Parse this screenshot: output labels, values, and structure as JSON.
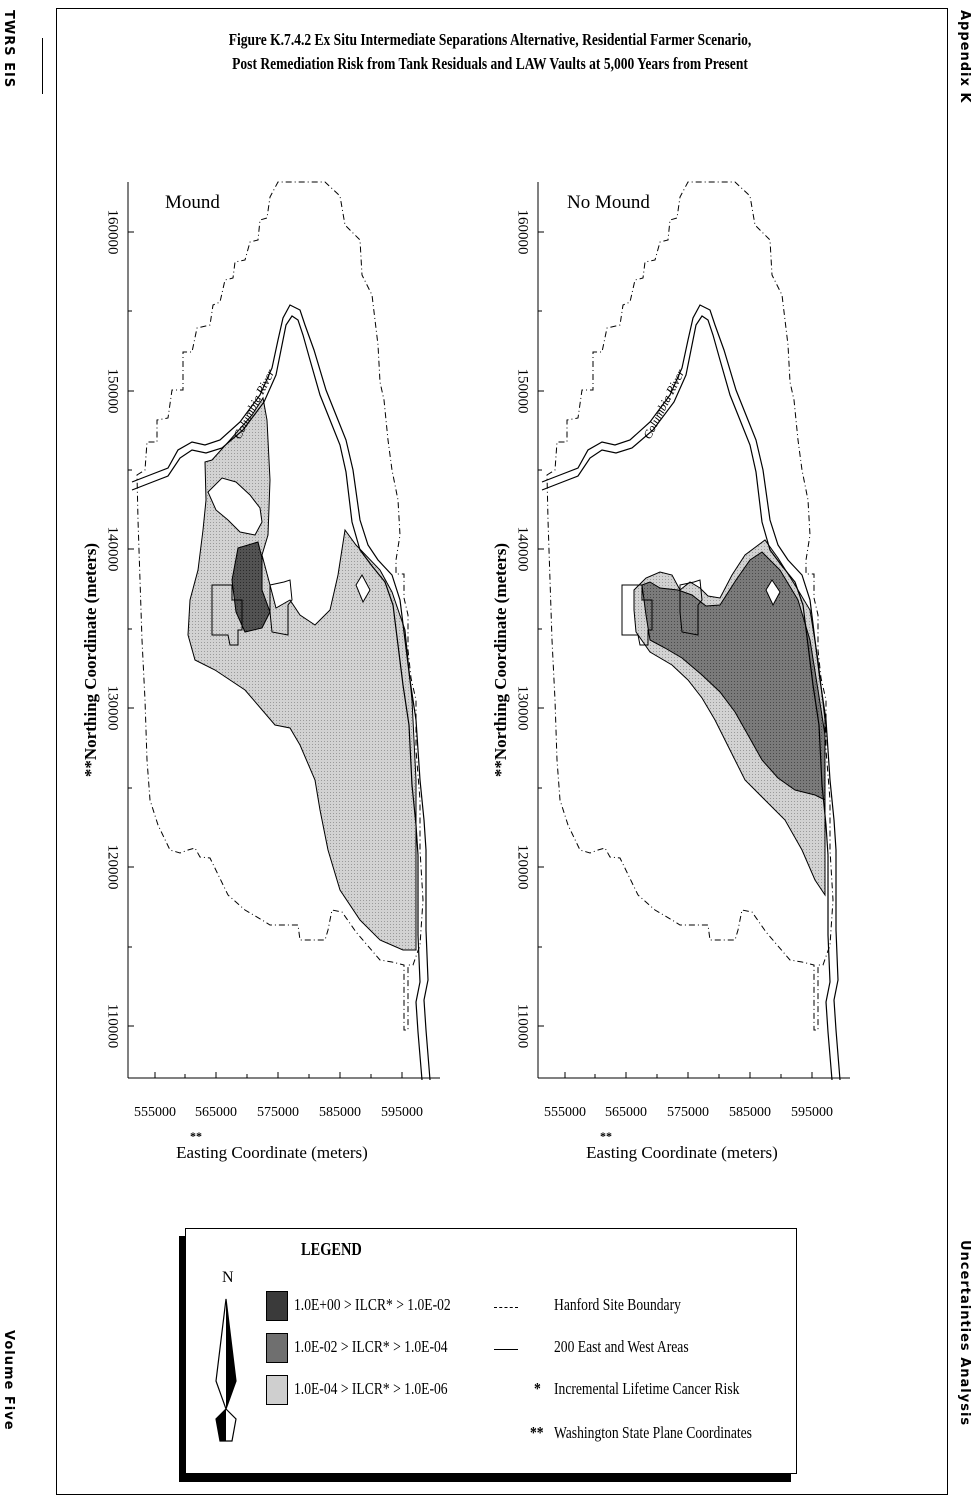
{
  "margin": {
    "left_header": "TWRS EIS",
    "left_footer": "Volume Five",
    "right_header": "Appendix K",
    "right_footer": "Uncertainties Analysis"
  },
  "figure": {
    "title_line1": "Figure K.7.4.2  Ex Situ Intermediate Separations Alternative, Residential Farmer Scenario,",
    "title_line2": "Post Remediation Risk from Tank Residuals and LAW Vaults at 5,000 Years from Present"
  },
  "maps": [
    {
      "label": "Mound",
      "river_label": "Columbia River",
      "ylabel": "**Northing Coordinate (meters)",
      "xlabel": "Easting Coordinate (meters)",
      "xlabel_prefix": "**",
      "yticks": [
        "160000",
        "150000",
        "140000",
        "130000",
        "120000",
        "110000"
      ],
      "xticks": [
        "555000",
        "565000",
        "575000",
        "585000",
        "595000"
      ]
    },
    {
      "label": "No Mound",
      "river_label": "Columbia River",
      "ylabel": "**Northing Coordinate (meters)",
      "xlabel": "Easting Coordinate (meters)",
      "xlabel_prefix": "**",
      "yticks": [
        "160000",
        "150000",
        "140000",
        "130000",
        "120000",
        "110000"
      ],
      "xticks": [
        "555000",
        "565000",
        "575000",
        "585000",
        "595000"
      ]
    }
  ],
  "legend": {
    "title": "LEGEND",
    "north": "N",
    "risk_levels": [
      {
        "label": "1.0E+00 > ILCR* > 1.0E-02",
        "color": "#3a3a3a"
      },
      {
        "label": "1.0E-02 > ILCR* > 1.0E-04",
        "color": "#6f6f6f"
      },
      {
        "label": "1.0E-04 > ILCR* > 1.0E-06",
        "color": "#cfcfcf"
      }
    ],
    "keys": [
      {
        "symbol": "dash",
        "label": "Hanford Site Boundary"
      },
      {
        "symbol": "line",
        "label": "200 East and West Areas"
      },
      {
        "symbol": "*",
        "label": "Incremental Lifetime Cancer Risk"
      },
      {
        "symbol": "**",
        "label": "Washington State Plane Coordinates"
      }
    ]
  }
}
